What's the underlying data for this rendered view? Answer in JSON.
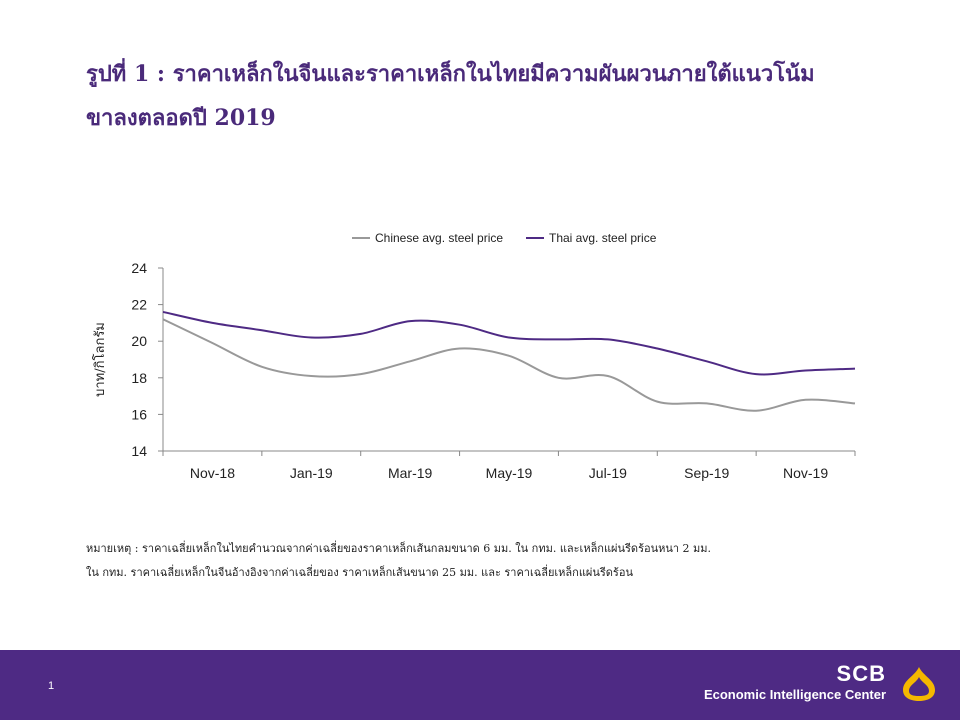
{
  "title": {
    "line1": "รูปที่ 1 : ราคาเหล็กในจีนและราคาเหล็กในไทยมีความผันผวนภายใต้แนวโน้ม",
    "line2": "ขาลงตลอดปี 2019"
  },
  "chart_data": {
    "type": "line",
    "ylabel": "บาท/กิโลกรัม",
    "ylim": [
      14,
      24
    ],
    "yticks": [
      14,
      16,
      18,
      20,
      22,
      24
    ],
    "xtick_labels": [
      "Nov-18",
      "Jan-19",
      "Mar-19",
      "May-19",
      "Jul-19",
      "Sep-19",
      "Nov-19"
    ],
    "x": [
      "Oct-18",
      "Nov-18",
      "Dec-18",
      "Jan-19",
      "Feb-19",
      "Mar-19",
      "Apr-19",
      "May-19",
      "Jun-19",
      "Jul-19",
      "Aug-19",
      "Sep-19",
      "Oct-19",
      "Nov-19",
      "Dec-19"
    ],
    "legend_position": "top",
    "grid": false,
    "series": [
      {
        "name": "Chinese avg. steel price",
        "color": "#999999",
        "values": [
          21.2,
          19.9,
          18.6,
          18.1,
          18.2,
          18.9,
          19.6,
          19.2,
          18.0,
          18.1,
          16.7,
          16.6,
          16.2,
          16.8,
          16.6
        ]
      },
      {
        "name": "Thai avg. steel price",
        "color": "#4e2a84",
        "values": [
          21.6,
          21.0,
          20.6,
          20.2,
          20.4,
          21.1,
          20.9,
          20.2,
          20.1,
          20.1,
          19.6,
          18.9,
          18.2,
          18.4,
          18.5
        ]
      }
    ]
  },
  "note": {
    "line1": "หมายเหตุ : ราคาเฉลี่ยเหล็กในไทยคำนวณจากค่าเฉลี่ยของราคาเหล็กเส้นกลมขนาด  6 มม. ใน กทม. และเหล็กแผ่นรีดร้อนหนา 2 มม.",
    "line2": "ใน กทม. ราคาเฉลี่ยเหล็กในจีนอ้างอิงจากค่าเฉลี่ยของ  ราคาเหล็กเส้นขนาด 25 มม. และ ราคาเฉลี่ยเหล็กแผ่นรีดร้อน"
  },
  "footer": {
    "page_number": "1",
    "brand_name": "SCB",
    "brand_sub": "Economic Intelligence Center",
    "background_color": "#4e2a84",
    "logo_color": "#f5b800"
  }
}
